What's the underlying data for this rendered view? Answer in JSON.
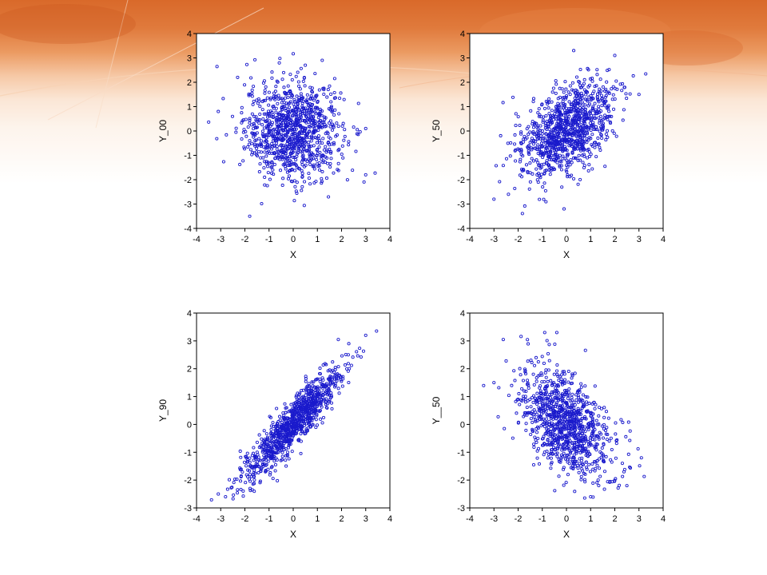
{
  "slide": {
    "background_top_color": "#d9692a",
    "background_bottom_color": "#ffffff"
  },
  "chart_data": [
    {
      "type": "scatter",
      "xlabel": "X",
      "ylabel": "Y_00",
      "xlim": [
        -4,
        4
      ],
      "ylim": [
        -4,
        4
      ],
      "xticks": [
        "-4",
        "-3",
        "-2",
        "-1",
        "0",
        "1",
        "2",
        "3",
        "4"
      ],
      "yticks": [
        "-4",
        "-3",
        "-2",
        "-1",
        "0",
        "1",
        "2",
        "3",
        "4"
      ],
      "marker_color": "#1a1acc",
      "marker": "open-circle",
      "n_points": 1000,
      "correlation": 0.0,
      "points_sample": [
        [
          -1.8,
          -3.5
        ],
        [
          1.2,
          2.9
        ],
        [
          3.0,
          0.1
        ],
        [
          -3.1,
          0.8
        ],
        [
          0.5,
          2.7
        ],
        [
          -2.3,
          2.2
        ]
      ]
    },
    {
      "type": "scatter",
      "xlabel": "X",
      "ylabel": "Y_50",
      "xlim": [
        -4,
        4
      ],
      "ylim": [
        -4,
        4
      ],
      "xticks": [
        "-4",
        "-3",
        "-2",
        "-1",
        "0",
        "1",
        "2",
        "3",
        "4"
      ],
      "yticks": [
        "-4",
        "-3",
        "-2",
        "-1",
        "0",
        "1",
        "2",
        "3",
        "4"
      ],
      "marker_color": "#1a1acc",
      "marker": "open-circle",
      "n_points": 1000,
      "correlation": 0.5,
      "points_sample": [
        [
          -3.0,
          -2.8
        ],
        [
          0.3,
          3.3
        ],
        [
          2.0,
          3.1
        ],
        [
          3.0,
          1.5
        ],
        [
          -0.1,
          -3.2
        ],
        [
          -2.4,
          -2.6
        ]
      ]
    },
    {
      "type": "scatter",
      "xlabel": "X",
      "ylabel": "Y_90",
      "xlim": [
        -4,
        4
      ],
      "ylim": [
        -3,
        4
      ],
      "xticks": [
        "-4",
        "-3",
        "-2",
        "-1",
        "0",
        "1",
        "2",
        "3",
        "4"
      ],
      "yticks": [
        "-3",
        "-2",
        "-1",
        "0",
        "1",
        "2",
        "3",
        "4"
      ],
      "marker_color": "#1a1acc",
      "marker": "open-circle",
      "n_points": 1000,
      "correlation": 0.9,
      "points_sample": [
        [
          -3.1,
          -2.5
        ],
        [
          -2.8,
          -2.6
        ],
        [
          3.0,
          3.2
        ],
        [
          2.3,
          2.9
        ],
        [
          0.4,
          0.6
        ],
        [
          -1.0,
          -0.8
        ]
      ]
    },
    {
      "type": "scatter",
      "xlabel": "X",
      "ylabel": "Y__50",
      "xlim": [
        -4,
        4
      ],
      "ylim": [
        -3,
        4
      ],
      "xticks": [
        "-4",
        "-3",
        "-2",
        "-1",
        "0",
        "1",
        "2",
        "3",
        "4"
      ],
      "yticks": [
        "-3",
        "-2",
        "-1",
        "0",
        "1",
        "2",
        "3",
        "4"
      ],
      "marker_color": "#1a1acc",
      "marker": "open-circle",
      "n_points": 1000,
      "correlation": -0.5,
      "points_sample": [
        [
          -0.9,
          3.3
        ],
        [
          -0.4,
          3.3
        ],
        [
          -3.0,
          1.5
        ],
        [
          3.1,
          -1.2
        ],
        [
          1.0,
          -2.6
        ],
        [
          2.5,
          -2.2
        ]
      ]
    }
  ]
}
